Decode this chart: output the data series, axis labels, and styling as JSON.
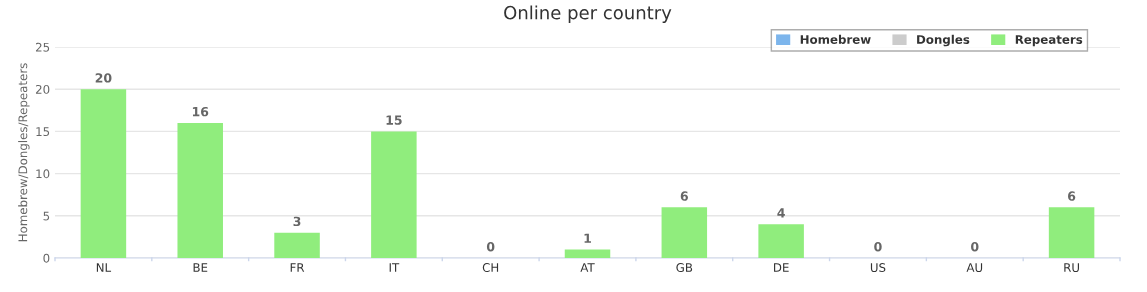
{
  "chart_data": {
    "type": "bar",
    "title": "Online per country",
    "ylabel": "Homebrew/Dongles/Repeaters",
    "categories": [
      "NL",
      "BE",
      "FR",
      "IT",
      "CH",
      "AT",
      "GB",
      "DE",
      "US",
      "AU",
      "RU"
    ],
    "series": [
      {
        "name": "Homebrew",
        "color": "#7cb5ec",
        "values": [
          null,
          null,
          null,
          null,
          null,
          null,
          null,
          null,
          null,
          null,
          null
        ]
      },
      {
        "name": "Dongles",
        "color": "#cccccc",
        "values": [
          null,
          null,
          null,
          null,
          null,
          null,
          null,
          null,
          null,
          null,
          null
        ]
      },
      {
        "name": "Repeaters",
        "color": "#90ed7d",
        "values": [
          20,
          16,
          3,
          15,
          0,
          1,
          6,
          4,
          0,
          0,
          6
        ]
      }
    ],
    "ylim": [
      0,
      25
    ],
    "yticks": [
      0,
      5,
      10,
      15,
      20,
      25
    ],
    "grid": "y",
    "legend": "top right",
    "data_labels": true
  }
}
